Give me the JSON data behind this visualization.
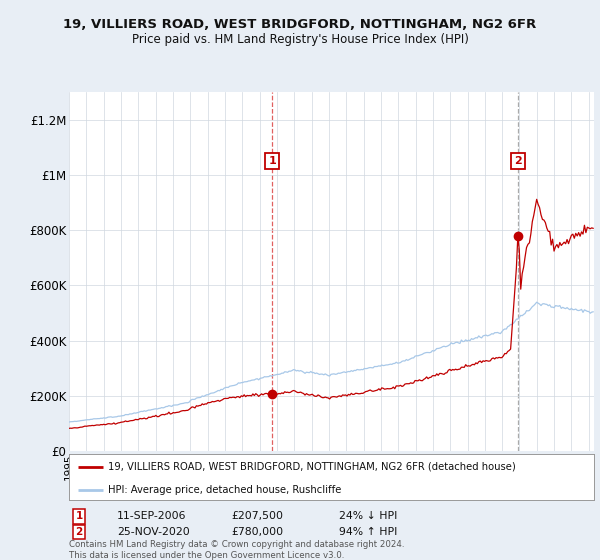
{
  "title1": "19, VILLIERS ROAD, WEST BRIDGFORD, NOTTINGHAM, NG2 6FR",
  "title2": "Price paid vs. HM Land Registry's House Price Index (HPI)",
  "ylim": [
    0,
    1300000
  ],
  "yticks": [
    0,
    200000,
    400000,
    600000,
    800000,
    1000000,
    1200000
  ],
  "ytick_labels": [
    "£0",
    "£200K",
    "£400K",
    "£600K",
    "£800K",
    "£1M",
    "£1.2M"
  ],
  "hpi_color": "#a8c8e8",
  "price_color": "#c00000",
  "vline1_color": "#e06060",
  "vline2_color": "#aaaaaa",
  "background_color": "#e8eef5",
  "plot_bg_color": "#ffffff",
  "transaction1_date": 2006.72,
  "transaction1_price": 207500,
  "transaction2_date": 2020.92,
  "transaction2_price": 780000,
  "legend_property": "19, VILLIERS ROAD, WEST BRIDGFORD, NOTTINGHAM, NG2 6FR (detached house)",
  "legend_hpi": "HPI: Average price, detached house, Rushcliffe",
  "footer": "Contains HM Land Registry data © Crown copyright and database right 2024.\nThis data is licensed under the Open Government Licence v3.0."
}
